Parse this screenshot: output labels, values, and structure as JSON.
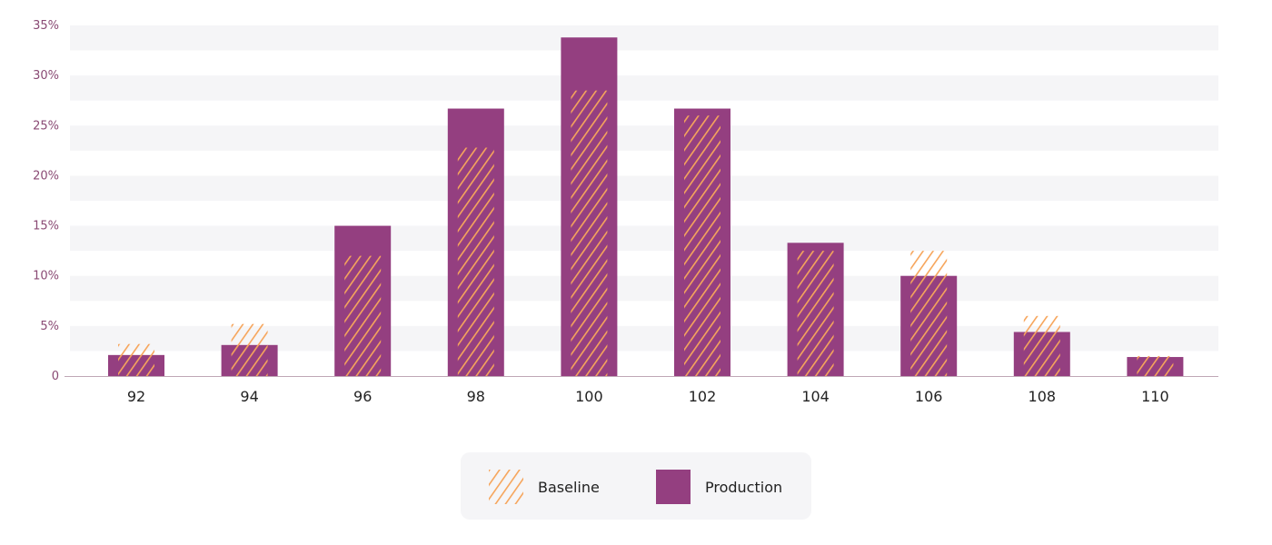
{
  "chart_data": {
    "type": "bar",
    "categories": [
      "92",
      "94",
      "96",
      "98",
      "100",
      "102",
      "104",
      "106",
      "108",
      "110"
    ],
    "series": [
      {
        "name": "Baseline",
        "values": [
          3.2,
          5.2,
          12.0,
          22.8,
          28.5,
          26.0,
          12.5,
          12.5,
          6.0,
          2.0
        ]
      },
      {
        "name": "Production",
        "values": [
          2.1,
          3.1,
          15.0,
          26.7,
          33.8,
          26.7,
          13.3,
          10.0,
          4.4,
          1.9
        ]
      }
    ],
    "ylim": [
      0,
      35
    ],
    "yticks": [
      "0",
      "5%",
      "10%",
      "15%",
      "20%",
      "25%",
      "30%",
      "35%"
    ],
    "grid": "alternating horizontal bands",
    "legend_position": "bottom-center",
    "colors": {
      "production": "#943f80",
      "baseline": "#f6a55b",
      "band": "#f5f5f7",
      "axis": "#bfa7b6"
    }
  }
}
